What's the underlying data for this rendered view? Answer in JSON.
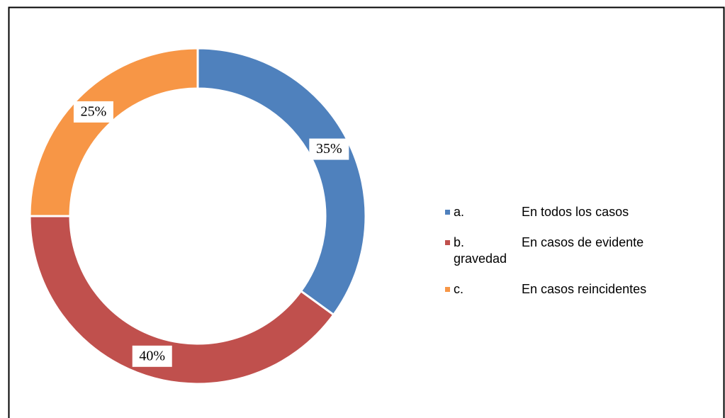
{
  "chart_data": {
    "type": "pie",
    "categories": [
      "a.\tEn todos los casos",
      "b.\tEn casos de evidente gravedad",
      "c.\tEn casos reincidentes"
    ],
    "values": [
      35,
      40,
      25
    ],
    "value_labels": [
      "35%",
      "40%",
      "25%"
    ],
    "colors": [
      "#4f81bd",
      "#c0504d",
      "#f79646"
    ],
    "legend": "right"
  }
}
